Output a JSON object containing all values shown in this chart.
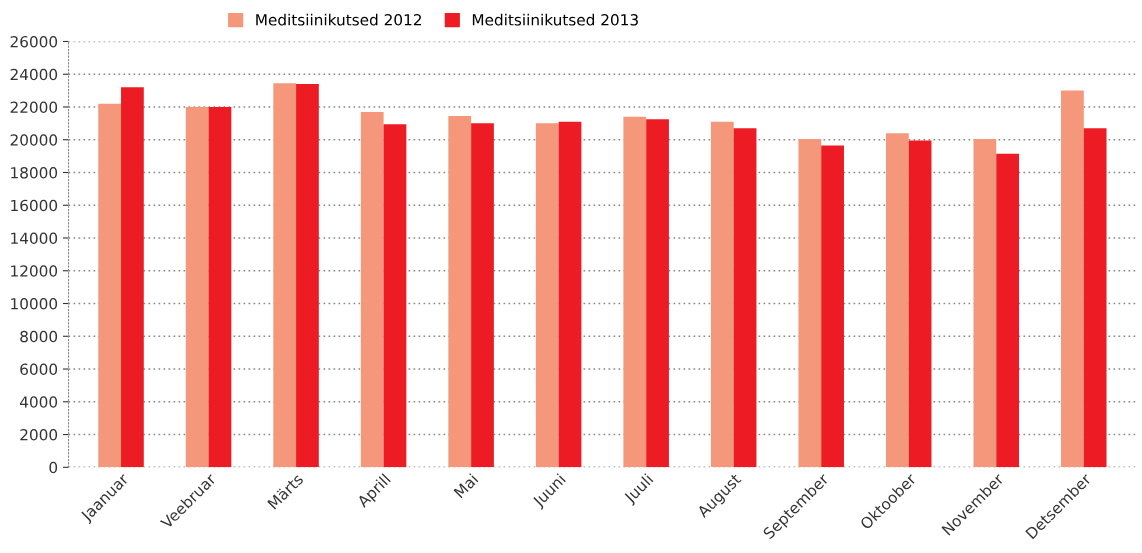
{
  "chart_data": {
    "type": "bar",
    "categories": [
      "Jaanuar",
      "Veebruar",
      "Märts",
      "Aprill",
      "Mai",
      "Juuni",
      "Juuli",
      "August",
      "September",
      "Oktoober",
      "November",
      "Detsember"
    ],
    "series": [
      {
        "name": "Meditsiinikutsed 2012",
        "color": "#f4977a",
        "values": [
          22200,
          22000,
          23450,
          21700,
          21450,
          21000,
          21400,
          21100,
          20050,
          20400,
          20050,
          23000
        ]
      },
      {
        "name": "Meditsiinikutsed 2013",
        "color": "#ed1c24",
        "values": [
          23200,
          22000,
          23400,
          20950,
          21000,
          21100,
          21250,
          20700,
          19650,
          19950,
          19150,
          20700
        ]
      }
    ],
    "ylim": [
      0,
      26000
    ],
    "yticks": [
      0,
      2000,
      4000,
      6000,
      8000,
      10000,
      12000,
      14000,
      16000,
      18000,
      20000,
      22000,
      24000,
      26000
    ],
    "grid": "y",
    "legend": "top"
  }
}
